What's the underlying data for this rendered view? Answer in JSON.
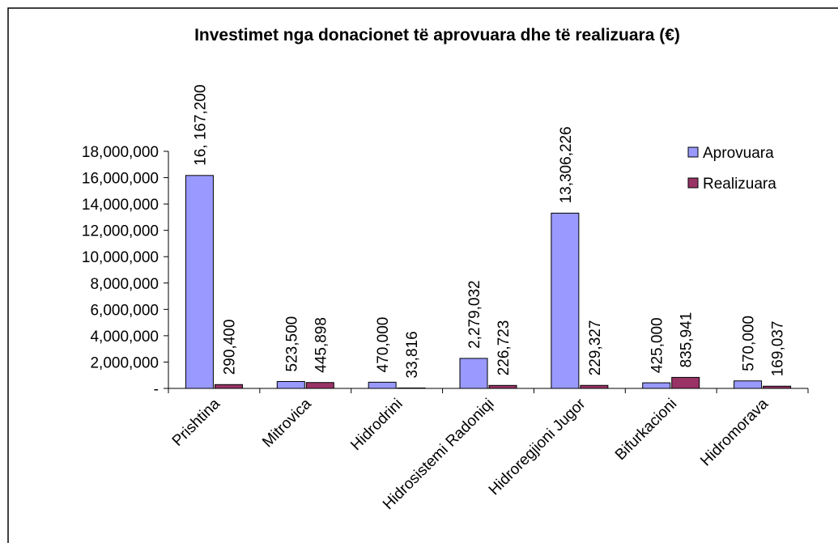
{
  "chart_data": {
    "type": "bar",
    "title": "Investimet nga donacionet të aprovuara dhe të realizuara (€)",
    "categories": [
      "Prishtina",
      "Mitrovica",
      "Hidrodrini",
      "Hidrosistemi Radoniqi",
      "Hidroregjioni Jugor",
      "Bifurkacioni",
      "Hidromorava"
    ],
    "series": [
      {
        "name": "Aprovuara",
        "color": "#9999ff",
        "values": [
          16167200,
          523500,
          470000,
          2279032,
          13306226,
          425000,
          570000
        ],
        "value_labels": [
          "16, 167,200",
          "523,500",
          "470,000",
          "2,279,032",
          "13,306,226",
          "425,000",
          "570,000"
        ]
      },
      {
        "name": "Realizuara",
        "color": "#993366",
        "values": [
          290400,
          445898,
          33816,
          226723,
          229327,
          835941,
          169037
        ],
        "value_labels": [
          "290,400",
          "445,898",
          "33,816",
          "226,723",
          "229,327",
          "835,941",
          "169,037"
        ]
      }
    ],
    "ylim": [
      0,
      18000000
    ],
    "yticks": [
      {
        "value": 0,
        "label": "-"
      },
      {
        "value": 2000000,
        "label": "2,000,000"
      },
      {
        "value": 4000000,
        "label": "4,000,000"
      },
      {
        "value": 6000000,
        "label": "6,000,000"
      },
      {
        "value": 8000000,
        "label": "8,000,000"
      },
      {
        "value": 10000000,
        "label": "10,000,000"
      },
      {
        "value": 12000000,
        "label": "12,000,000"
      },
      {
        "value": 14000000,
        "label": "14,000,000"
      },
      {
        "value": 16000000,
        "label": "16,000,000"
      },
      {
        "value": 18000000,
        "label": "18,000,000"
      }
    ],
    "grid": false,
    "legend": "upper right"
  }
}
